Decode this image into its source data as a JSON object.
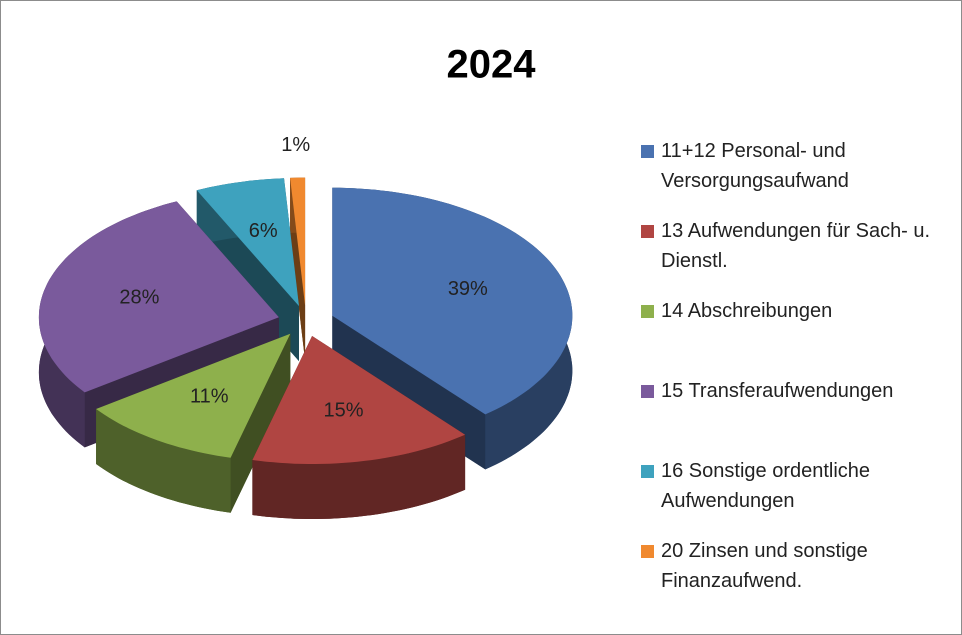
{
  "chart_data": {
    "type": "pie",
    "title": "2024",
    "categories": [
      "11+12 Personal- und Versorgungsaufwand",
      "13 Aufwendungen für Sach- u. Dienstl.",
      "14 Abschreibungen",
      "15 Transferaufwendungen",
      "16 Sonstige ordentliche Aufwendungen",
      "20 Zinsen und sonstige Finanzaufwend."
    ],
    "values": [
      39,
      15,
      11,
      28,
      6,
      1
    ],
    "value_labels": [
      "39%",
      "15%",
      "11%",
      "28%",
      "6%",
      "1%"
    ],
    "colors": [
      "#4a72b0",
      "#b04542",
      "#8eb04c",
      "#7a5a9c",
      "#3ea2be",
      "#f0892f"
    ],
    "legend": "right"
  }
}
